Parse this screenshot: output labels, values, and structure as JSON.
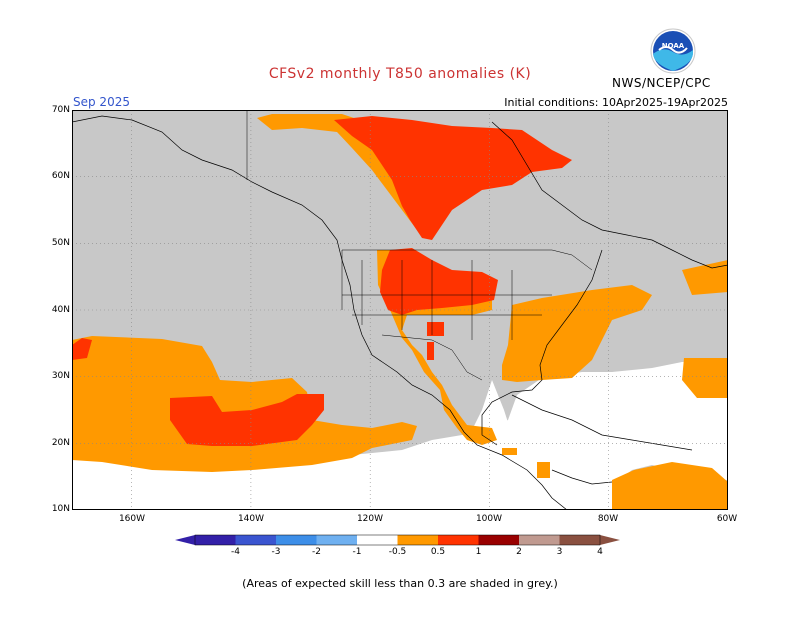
{
  "title": "CFSv2 monthly T850 anomalies (K)",
  "month": "Sep 2025",
  "initial_conditions": "Initial conditions: 10Apr2025-19Apr2025",
  "agency": "NWS/NCEP/CPC",
  "logo_text": "NOAA",
  "footnote": "(Areas of expected skill less than 0.3 are shaded in grey.)",
  "lat_labels": [
    "70N",
    "60N",
    "50N",
    "40N",
    "30N",
    "20N",
    "10N"
  ],
  "lon_labels": [
    "160W",
    "140W",
    "120W",
    "100W",
    "80W",
    "60W"
  ],
  "colorbar": {
    "labels": [
      "-4",
      "-3",
      "-2",
      "-1",
      "-0.5",
      "0.5",
      "1",
      "2",
      "3",
      "4"
    ],
    "colors": [
      "#3320a8",
      "#3a55d0",
      "#3d8ee8",
      "#6fb0f0",
      "#ffffff",
      "#ff9900",
      "#ff3300",
      "#990000",
      "#c09a90",
      "#8a5040"
    ]
  },
  "map_colors": {
    "no_skill_grey": "#c8c8c8",
    "anomaly_0_5_to_1": "#ff9900",
    "anomaly_1_to_2": "#ff3300",
    "background": "#ffffff"
  }
}
